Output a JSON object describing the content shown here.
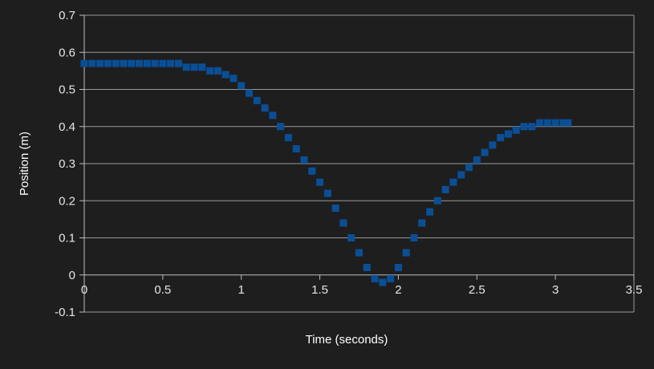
{
  "colors": {
    "background": "#1e1e1e",
    "grid": "#9a9a9a",
    "axis": "#bdbdbd",
    "text": "#e6e6e6",
    "series": "#0a4f96"
  },
  "chart_data": {
    "type": "scatter",
    "title": "",
    "xlabel": "Time (seconds)",
    "ylabel": "Position (m)",
    "xlim": [
      0,
      3.5
    ],
    "ylim": [
      -0.1,
      0.7
    ],
    "x_ticks": [
      0,
      0.5,
      1,
      1.5,
      2,
      2.5,
      3,
      3.5
    ],
    "y_ticks": [
      -0.1,
      0,
      0.1,
      0.2,
      0.3,
      0.4,
      0.5,
      0.6,
      0.7
    ],
    "x_tick_labels": [
      "0",
      "0.5",
      "1",
      "1.5",
      "2",
      "2.5",
      "3",
      "3.5"
    ],
    "y_tick_labels": [
      "-0.1",
      "0",
      "0.1",
      "0.2",
      "0.3",
      "0.4",
      "0.5",
      "0.6",
      "0.7"
    ],
    "grid": "horizontal",
    "legend": "none",
    "series": [
      {
        "marker": "square",
        "x": [
          0,
          0.05,
          0.1,
          0.15,
          0.2,
          0.25,
          0.3,
          0.35,
          0.4,
          0.45,
          0.5,
          0.55,
          0.6,
          0.65,
          0.7,
          0.75,
          0.8,
          0.85,
          0.9,
          0.95,
          1.0,
          1.05,
          1.1,
          1.15,
          1.2,
          1.25,
          1.3,
          1.35,
          1.4,
          1.45,
          1.5,
          1.55,
          1.6,
          1.65,
          1.7,
          1.75,
          1.8,
          1.85,
          1.9,
          1.95,
          2.0,
          2.05,
          2.1,
          2.15,
          2.2,
          2.25,
          2.3,
          2.35,
          2.4,
          2.45,
          2.5,
          2.55,
          2.6,
          2.65,
          2.7,
          2.75,
          2.8,
          2.85,
          2.9,
          2.95,
          3.0,
          3.05,
          3.08
        ],
        "y": [
          0.57,
          0.57,
          0.57,
          0.57,
          0.57,
          0.57,
          0.57,
          0.57,
          0.57,
          0.57,
          0.57,
          0.57,
          0.57,
          0.56,
          0.56,
          0.56,
          0.55,
          0.55,
          0.54,
          0.53,
          0.51,
          0.49,
          0.47,
          0.45,
          0.43,
          0.4,
          0.37,
          0.34,
          0.31,
          0.28,
          0.25,
          0.22,
          0.18,
          0.14,
          0.1,
          0.06,
          0.02,
          -0.01,
          -0.02,
          -0.01,
          0.02,
          0.06,
          0.1,
          0.14,
          0.17,
          0.2,
          0.23,
          0.25,
          0.27,
          0.29,
          0.31,
          0.33,
          0.35,
          0.37,
          0.38,
          0.39,
          0.4,
          0.4,
          0.41,
          0.41,
          0.41,
          0.41,
          0.41
        ]
      }
    ]
  }
}
